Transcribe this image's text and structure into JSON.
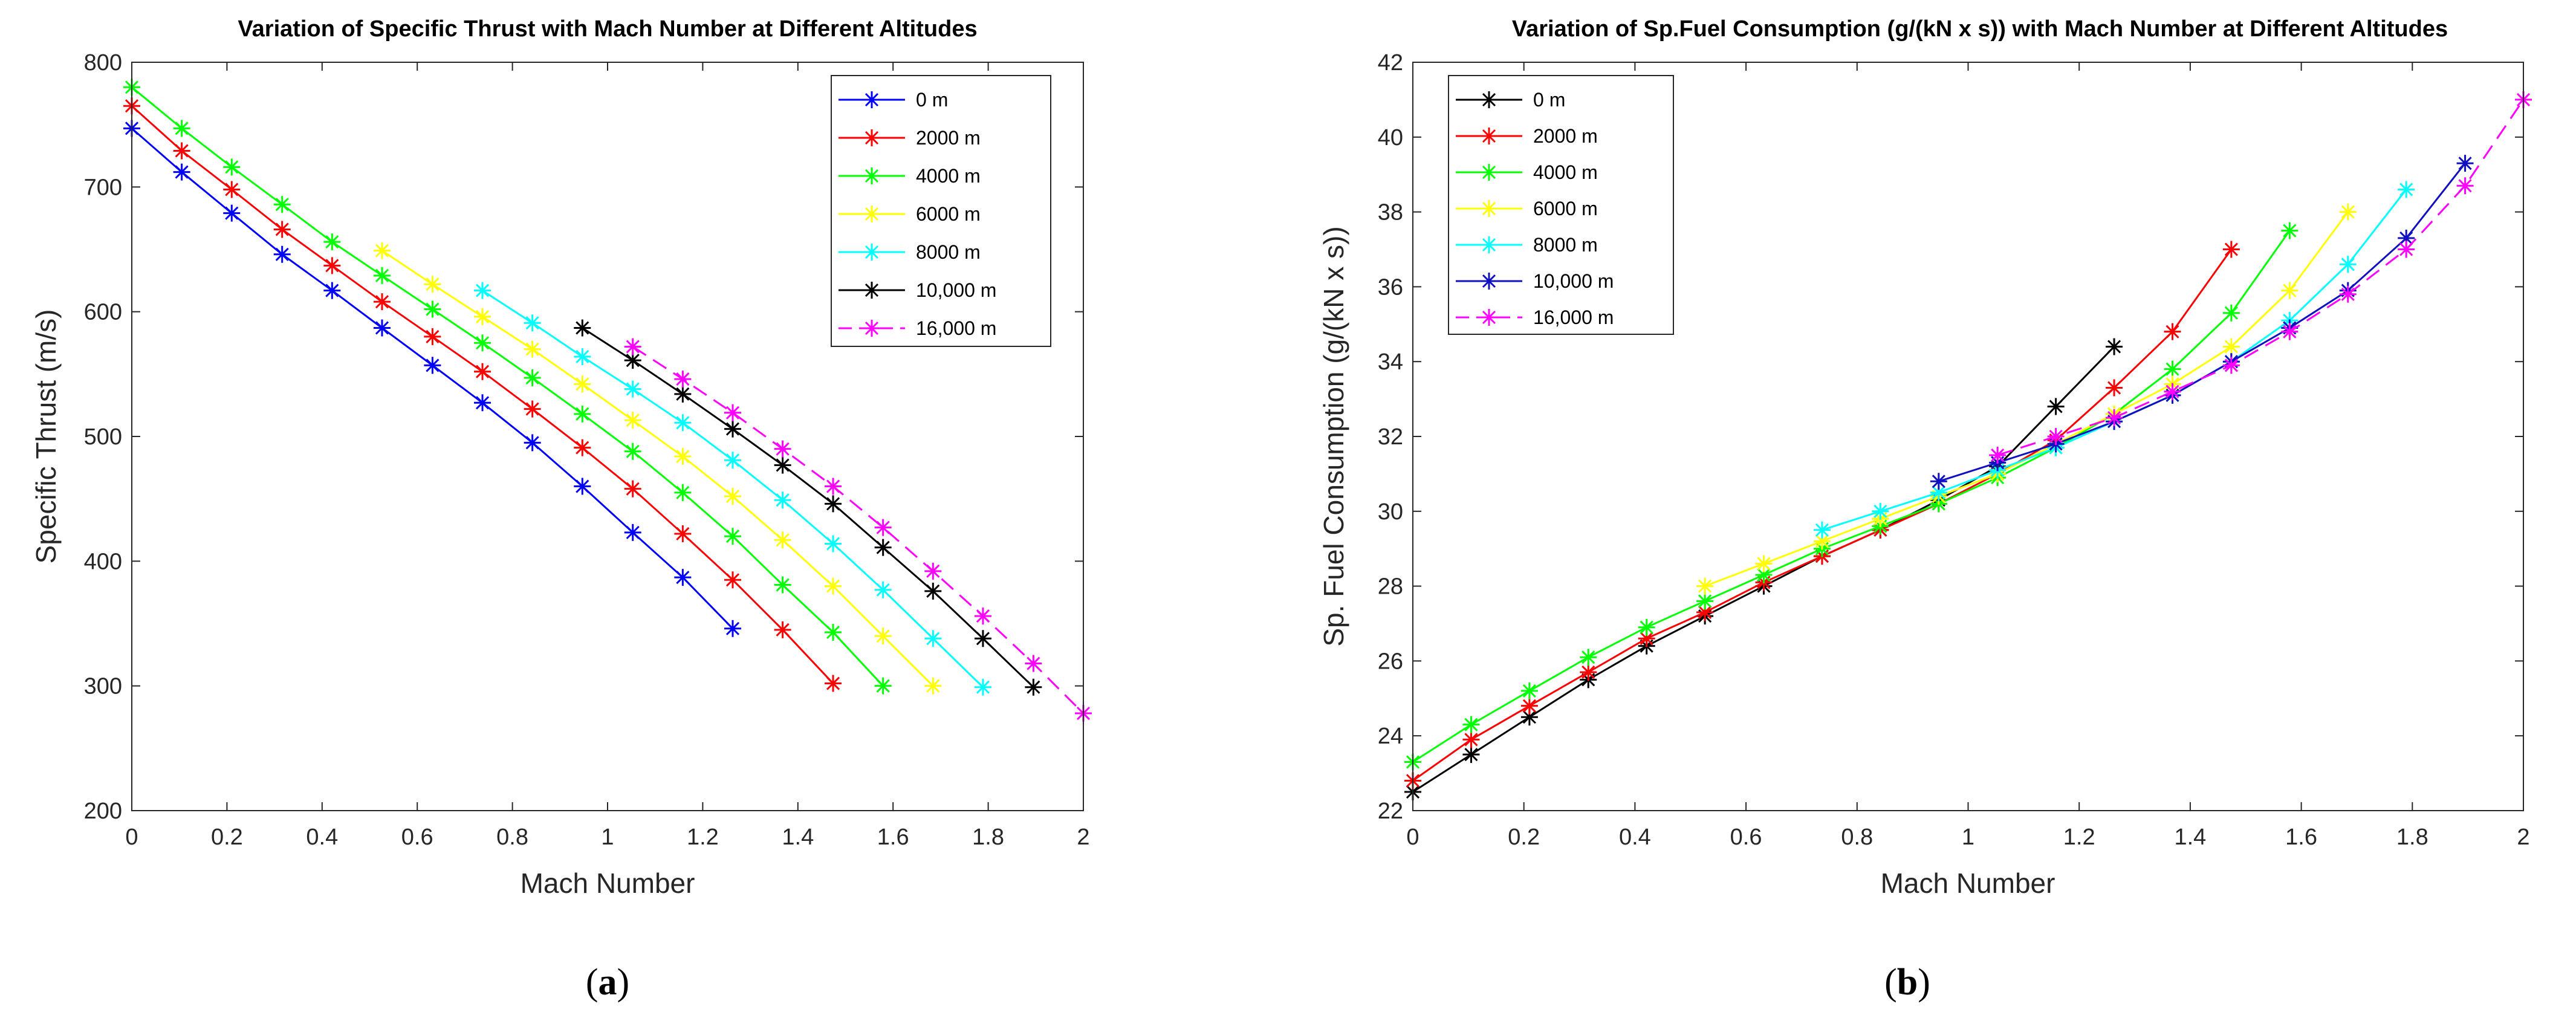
{
  "chart_data": [
    {
      "type": "line",
      "title": "Variation of Specific Thrust with Mach Number at Different Altitudes",
      "xlabel": "Mach Number",
      "ylabel": "Specific Thrust (m/s)",
      "xlim": [
        0,
        2
      ],
      "ylim": [
        200,
        800
      ],
      "xticks": [
        0,
        0.2,
        0.4,
        0.6,
        0.8,
        1,
        1.2,
        1.4,
        1.6,
        1.8,
        2
      ],
      "xtick_labels": [
        "0",
        "0.2",
        "0.4",
        "0.6",
        "0.8",
        "1",
        "1.2",
        "1.4",
        "1.6",
        "1.8",
        "2"
      ],
      "yticks": [
        200,
        300,
        400,
        500,
        600,
        700,
        800
      ],
      "ytick_labels": [
        "200",
        "300",
        "400",
        "500",
        "600",
        "700",
        "800"
      ],
      "legend_position": "top-right",
      "caption": {
        "open": "(",
        "letter": "a",
        "close": ")"
      },
      "series": [
        {
          "name": "0 m",
          "color": "#0000ff",
          "dashed": false,
          "x": [
            0,
            0.105,
            0.21,
            0.316,
            0.421,
            0.526,
            0.632,
            0.737,
            0.842,
            0.947,
            1.053,
            1.158,
            1.263
          ],
          "y": [
            747,
            712,
            679,
            646,
            617,
            587,
            557,
            527,
            495,
            460,
            423,
            387,
            346
          ]
        },
        {
          "name": "2000 m",
          "color": "#ff0000",
          "dashed": false,
          "x": [
            0,
            0.105,
            0.21,
            0.316,
            0.421,
            0.526,
            0.632,
            0.737,
            0.842,
            0.947,
            1.053,
            1.158,
            1.263,
            1.368,
            1.474
          ],
          "y": [
            765,
            729,
            698,
            666,
            637,
            608,
            580,
            552,
            522,
            491,
            458,
            422,
            385,
            345,
            302
          ]
        },
        {
          "name": "4000 m",
          "color": "#00ff00",
          "dashed": false,
          "x": [
            0,
            0.105,
            0.21,
            0.316,
            0.421,
            0.526,
            0.632,
            0.737,
            0.842,
            0.947,
            1.053,
            1.158,
            1.263,
            1.368,
            1.474,
            1.579
          ],
          "y": [
            780,
            747,
            716,
            686,
            656,
            629,
            602,
            575,
            547,
            518,
            488,
            455,
            420,
            381,
            343,
            300
          ]
        },
        {
          "name": "6000 m",
          "color": "#ffff00",
          "dashed": false,
          "x": [
            0.526,
            0.632,
            0.737,
            0.842,
            0.947,
            1.053,
            1.158,
            1.263,
            1.368,
            1.474,
            1.579,
            1.684
          ],
          "y": [
            649,
            622,
            596,
            570,
            542,
            513,
            484,
            452,
            417,
            380,
            340,
            300
          ]
        },
        {
          "name": "8000 m",
          "color": "#00ffff",
          "dashed": false,
          "x": [
            0.737,
            0.842,
            0.947,
            1.053,
            1.158,
            1.263,
            1.368,
            1.474,
            1.579,
            1.684,
            1.789
          ],
          "y": [
            617,
            591,
            564,
            538,
            511,
            481,
            449,
            414,
            377,
            338,
            299
          ]
        },
        {
          "name": "10,000 m",
          "color": "#000000",
          "dashed": false,
          "x": [
            0.947,
            1.053,
            1.158,
            1.263,
            1.368,
            1.474,
            1.579,
            1.684,
            1.789,
            1.895
          ],
          "y": [
            587,
            561,
            534,
            506,
            477,
            446,
            411,
            376,
            338,
            299
          ]
        },
        {
          "name": "16,000 m",
          "color": "#ff00ff",
          "dashed": true,
          "x": [
            1.053,
            1.158,
            1.263,
            1.368,
            1.474,
            1.579,
            1.684,
            1.789,
            1.895,
            2.0
          ],
          "y": [
            572,
            546,
            519,
            490,
            460,
            427,
            392,
            356,
            318,
            278
          ]
        }
      ]
    },
    {
      "type": "line",
      "title": "Variation of Sp.Fuel Consumption (g/(kN x s)) with Mach Number at Different Altitudes",
      "xlabel": "Mach Number",
      "ylabel": "Sp. Fuel Consumption (g/(kN x s))",
      "xlim": [
        0,
        2
      ],
      "ylim": [
        22,
        42
      ],
      "xticks": [
        0,
        0.2,
        0.4,
        0.6,
        0.8,
        1,
        1.2,
        1.4,
        1.6,
        1.8,
        2
      ],
      "xtick_labels": [
        "0",
        "0.2",
        "0.4",
        "0.6",
        "0.8",
        "1",
        "1.2",
        "1.4",
        "1.6",
        "1.8",
        "2"
      ],
      "yticks": [
        22,
        24,
        26,
        28,
        30,
        32,
        34,
        36,
        38,
        40,
        42
      ],
      "ytick_labels": [
        "22",
        "24",
        "26",
        "28",
        "30",
        "32",
        "34",
        "36",
        "38",
        "40",
        "42"
      ],
      "legend_position": "top-left",
      "caption": {
        "open": "(",
        "letter": "b",
        "close": ")"
      },
      "series": [
        {
          "name": "0 m",
          "color": "#000000",
          "dashed": false,
          "x": [
            0,
            0.105,
            0.21,
            0.316,
            0.421,
            0.526,
            0.632,
            0.737,
            0.842,
            0.947,
            1.053,
            1.158,
            1.263
          ],
          "y": [
            22.5,
            23.5,
            24.5,
            25.5,
            26.4,
            27.2,
            28.0,
            28.8,
            29.5,
            30.3,
            31.2,
            32.8,
            34.4
          ]
        },
        {
          "name": "2000 m",
          "color": "#ff0000",
          "dashed": false,
          "x": [
            0,
            0.105,
            0.21,
            0.316,
            0.421,
            0.526,
            0.632,
            0.737,
            0.842,
            0.947,
            1.053,
            1.158,
            1.263,
            1.368,
            1.474
          ],
          "y": [
            22.8,
            23.9,
            24.8,
            25.7,
            26.6,
            27.3,
            28.1,
            28.8,
            29.5,
            30.2,
            31.0,
            31.9,
            33.3,
            34.8,
            37.0
          ]
        },
        {
          "name": "4000 m",
          "color": "#00ff00",
          "dashed": false,
          "x": [
            0,
            0.105,
            0.21,
            0.316,
            0.421,
            0.526,
            0.632,
            0.737,
            0.842,
            0.947,
            1.053,
            1.158,
            1.263,
            1.368,
            1.474,
            1.579
          ],
          "y": [
            23.3,
            24.3,
            25.2,
            26.1,
            26.9,
            27.6,
            28.3,
            29.0,
            29.6,
            30.2,
            30.9,
            31.7,
            32.6,
            33.8,
            35.3,
            37.5
          ]
        },
        {
          "name": "6000 m",
          "color": "#ffff00",
          "dashed": false,
          "x": [
            0.526,
            0.632,
            0.737,
            0.842,
            0.947,
            1.053,
            1.158,
            1.263,
            1.368,
            1.474,
            1.579,
            1.684
          ],
          "y": [
            28.0,
            28.6,
            29.2,
            29.8,
            30.4,
            31.0,
            31.8,
            32.6,
            33.4,
            34.4,
            35.9,
            38.0
          ]
        },
        {
          "name": "8000 m",
          "color": "#00ffff",
          "dashed": false,
          "x": [
            0.737,
            0.842,
            0.947,
            1.053,
            1.158,
            1.263,
            1.368,
            1.474,
            1.579,
            1.684,
            1.789
          ],
          "y": [
            29.5,
            30.0,
            30.5,
            31.1,
            31.7,
            32.4,
            33.1,
            34.0,
            35.1,
            36.6,
            38.6
          ]
        },
        {
          "name": "10,000 m",
          "color": "#1010c0",
          "dashed": false,
          "x": [
            0.947,
            1.053,
            1.158,
            1.263,
            1.368,
            1.474,
            1.579,
            1.684,
            1.789,
            1.895
          ],
          "y": [
            30.8,
            31.3,
            31.8,
            32.4,
            33.1,
            34.0,
            34.9,
            35.9,
            37.3,
            39.3
          ]
        },
        {
          "name": "16,000 m",
          "color": "#ff00ff",
          "dashed": true,
          "x": [
            1.053,
            1.158,
            1.263,
            1.368,
            1.474,
            1.579,
            1.684,
            1.789,
            1.895,
            2.0
          ],
          "y": [
            31.5,
            32.0,
            32.5,
            33.2,
            33.9,
            34.8,
            35.8,
            37.0,
            38.7,
            41.0
          ]
        }
      ]
    }
  ]
}
